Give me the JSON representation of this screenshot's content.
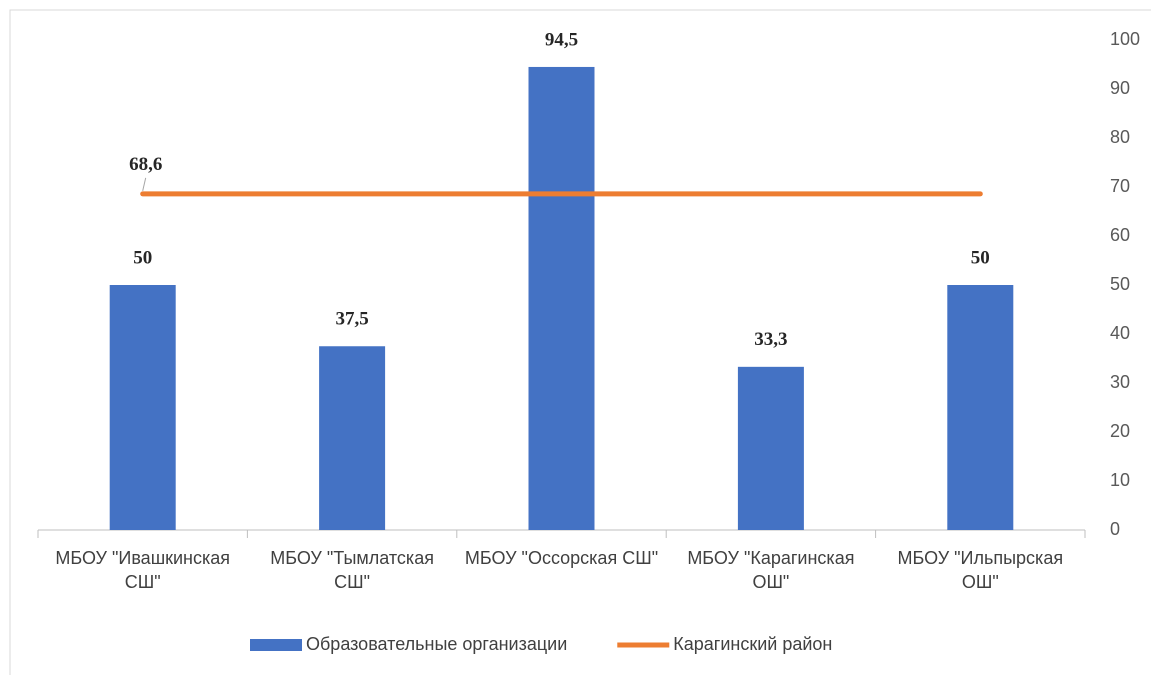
{
  "chart_data": {
    "type": "bar",
    "categories": [
      "МБОУ \"Ивашкинская СШ\"",
      "МБОУ \"Тымлатская СШ\"",
      "МБОУ \"Оссорская СШ\"",
      "МБОУ \"Карагинская ОШ\"",
      "МБОУ \"Ильпырская ОШ\""
    ],
    "series": [
      {
        "name": "Образовательные организации",
        "type": "bar",
        "color": "#4472c4",
        "values": [
          50,
          37.5,
          94.5,
          33.3,
          50
        ],
        "value_labels": [
          "50",
          "37,5",
          "94,5",
          "33,3",
          "50"
        ]
      },
      {
        "name": "Карагинский район",
        "type": "line",
        "color": "#ed7d31",
        "values": [
          68.6,
          68.6,
          68.6,
          68.6,
          68.6
        ],
        "value_labels": [
          "68,6",
          null,
          null,
          null,
          null
        ]
      }
    ],
    "ylim": [
      0,
      100
    ],
    "yticks": [
      0,
      10,
      20,
      30,
      40,
      50,
      60,
      70,
      80,
      90,
      100
    ],
    "y_axis_side": "right",
    "grid": false,
    "legend": "bottom"
  }
}
